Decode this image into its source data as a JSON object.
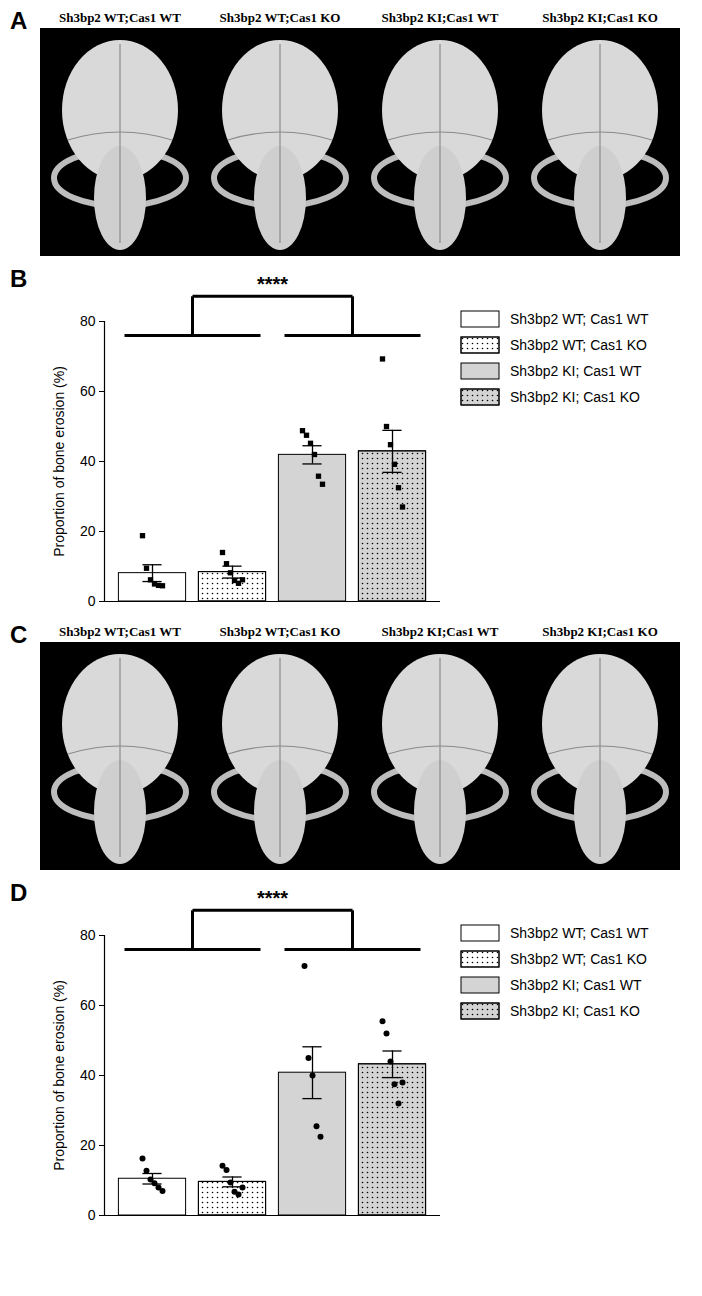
{
  "images": [
    {
      "panel": "A",
      "labels": [
        "Sh3bp2 WT;Cas1 WT",
        "Sh3bp2 WT;Cas1 KO",
        "Sh3bp2 KI;Cas1 WT",
        "Sh3bp2 KI;Cas1 KO"
      ]
    },
    {
      "panel": "C",
      "labels": [
        "Sh3bp2 WT;Cas1 WT",
        "Sh3bp2 WT;Cas1 KO",
        "Sh3bp2 KI;Cas1 WT",
        "Sh3bp2 KI;Cas1 KO"
      ]
    }
  ],
  "chart_data": [
    {
      "panel": "B",
      "type": "bar",
      "ylabel": "Proportion of bone erosion (%)",
      "ylim": [
        0,
        80
      ],
      "yticks": [
        0,
        20,
        40,
        60,
        80
      ],
      "tick_labels": "y",
      "legend": "right",
      "marker": "square",
      "annotations": [
        "****"
      ],
      "series": [
        {
          "name": "Sh3bp2 WT; Cas1 WT",
          "color": "#ffffff",
          "value": 8.1,
          "error": 2.4,
          "points": [
            18.8,
            9.5,
            6.2,
            5.0,
            4.6,
            4.5
          ]
        },
        {
          "name": "Sh3bp2 WT; Cas1 KO",
          "color": "#ffffff",
          "value": 8.4,
          "error": 1.7,
          "points": [
            14.0,
            10.8,
            8.2,
            6.0,
            5.2,
            6.2
          ]
        },
        {
          "name": "Sh3bp2 KI; Cas1 WT",
          "color": "#d4d4d4",
          "value": 41.9,
          "error": 2.6,
          "points": [
            48.8,
            47.5,
            45.2,
            42.0,
            35.8,
            33.5
          ]
        },
        {
          "name": "Sh3bp2 KI; Cas1 KO",
          "color": "#d4d4d4",
          "value": 42.9,
          "error": 6.0,
          "points": [
            69.3,
            50.0,
            44.8,
            39.2,
            32.5,
            27.0
          ]
        }
      ]
    },
    {
      "panel": "D",
      "type": "bar",
      "ylabel": "Proportion of bone erosion (%)",
      "ylim": [
        0,
        80
      ],
      "yticks": [
        0,
        20,
        40,
        60,
        80
      ],
      "tick_labels": "y",
      "legend": "right",
      "marker": "circle",
      "annotations": [
        "****"
      ],
      "series": [
        {
          "name": "Sh3bp2 WT; Cas1 WT",
          "color": "#ffffff",
          "value": 10.5,
          "error": 1.5,
          "points": [
            16.3,
            12.8,
            10.3,
            9.2,
            8.0,
            7.0
          ]
        },
        {
          "name": "Sh3bp2 WT; Cas1 KO",
          "color": "#ffffff",
          "value": 9.6,
          "error": 1.4,
          "points": [
            14.2,
            13.0,
            9.4,
            6.8,
            6.0,
            8.0
          ]
        },
        {
          "name": "Sh3bp2 KI; Cas1 WT",
          "color": "#d4d4d4",
          "value": 40.8,
          "error": 7.4,
          "points": [
            71.3,
            45.0,
            40.0,
            25.5,
            22.5
          ]
        },
        {
          "name": "Sh3bp2 KI; Cas1 KO",
          "color": "#d4d4d4",
          "value": 43.2,
          "error": 3.8,
          "points": [
            55.5,
            52.0,
            44.0,
            37.5,
            32.0,
            38.0
          ]
        }
      ]
    }
  ]
}
